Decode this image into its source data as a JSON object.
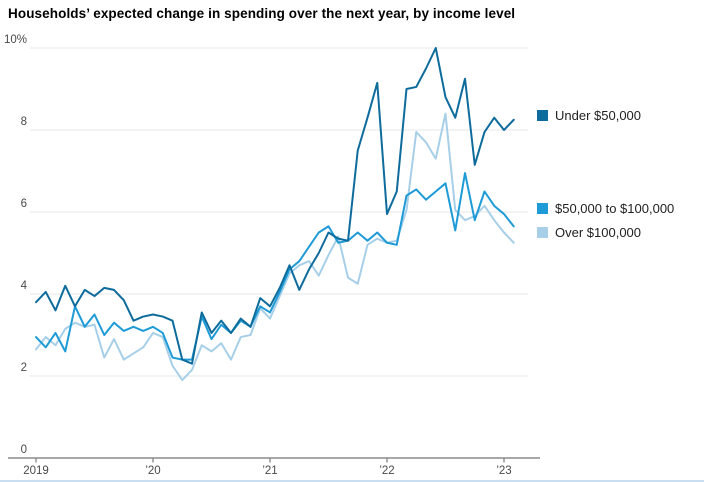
{
  "chart_data": {
    "type": "line",
    "title": "Households’ expected change in spending over the next year, by income level",
    "xlabel": "",
    "ylabel": "",
    "ylim": [
      0,
      10
    ],
    "grid": "horizontal",
    "y_ticks": [
      {
        "label": "10%",
        "value": 10
      },
      {
        "label": "8",
        "value": 8
      },
      {
        "label": "6",
        "value": 6
      },
      {
        "label": "4",
        "value": 4
      },
      {
        "label": "2",
        "value": 2
      },
      {
        "label": "0",
        "value": 0
      }
    ],
    "x_ticks": [
      {
        "label": "2019",
        "month_index": 0
      },
      {
        "label": "’20",
        "month_index": 12
      },
      {
        "label": "’21",
        "month_index": 24
      },
      {
        "label": "’22",
        "month_index": 36
      },
      {
        "label": "’23",
        "month_index": 48
      }
    ],
    "x_start": "Jan 2019",
    "x_end": "Feb 2023",
    "frequency": "monthly",
    "legend_position": "right",
    "series": [
      {
        "name": "Under $50,000",
        "color": "#0e6c9d",
        "values": [
          3.8,
          4.05,
          3.6,
          4.2,
          3.7,
          4.1,
          3.95,
          4.15,
          4.1,
          3.85,
          3.35,
          3.45,
          3.5,
          3.45,
          3.35,
          2.4,
          2.3,
          3.55,
          3.05,
          3.35,
          3.05,
          3.4,
          3.2,
          3.9,
          3.7,
          4.15,
          4.7,
          4.1,
          4.6,
          5.0,
          5.5,
          5.35,
          5.3,
          7.5,
          8.3,
          9.15,
          5.95,
          6.5,
          9.0,
          9.05,
          9.5,
          10.0,
          8.8,
          8.3,
          9.25,
          7.15,
          7.95,
          8.3,
          8.0,
          8.25
        ]
      },
      {
        "name": "$50,000 to $100,000",
        "color": "#1e9bd7",
        "values": [
          2.95,
          2.7,
          3.05,
          2.6,
          3.7,
          3.2,
          3.5,
          3.0,
          3.3,
          3.1,
          3.2,
          3.1,
          3.2,
          3.05,
          2.45,
          2.4,
          2.4,
          3.45,
          2.9,
          3.25,
          3.05,
          3.35,
          3.2,
          3.7,
          3.55,
          4.05,
          4.6,
          4.8,
          5.15,
          5.5,
          5.65,
          5.25,
          5.3,
          5.5,
          5.3,
          5.5,
          5.25,
          5.2,
          6.4,
          6.55,
          6.3,
          6.5,
          6.7,
          5.55,
          6.95,
          5.8,
          6.5,
          6.15,
          5.95,
          5.65
        ]
      },
      {
        "name": "Over $100,000",
        "color": "#a7cfe8",
        "values": [
          2.65,
          2.95,
          2.75,
          3.15,
          3.3,
          3.2,
          3.25,
          2.45,
          2.9,
          2.4,
          2.55,
          2.7,
          3.05,
          2.95,
          2.25,
          1.9,
          2.15,
          2.75,
          2.6,
          2.8,
          2.4,
          2.95,
          3.0,
          3.65,
          3.4,
          3.95,
          4.5,
          4.7,
          4.8,
          4.45,
          4.95,
          5.4,
          4.4,
          4.25,
          5.2,
          5.35,
          5.25,
          5.3,
          6.05,
          7.95,
          7.7,
          7.3,
          8.4,
          6.05,
          5.8,
          5.9,
          6.15,
          5.8,
          5.5,
          5.25
        ]
      }
    ],
    "style": {
      "gridline_color": "#e7e7e7",
      "axis_color": "#8c8c8c",
      "tick_label_color": "#4a4a4a",
      "line_width": 2
    }
  }
}
